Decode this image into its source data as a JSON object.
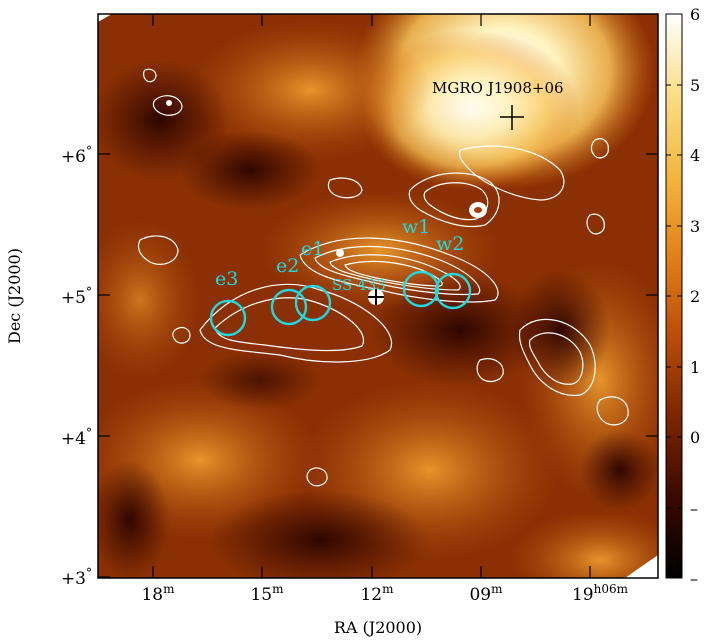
{
  "figure": {
    "xlabel": "RA (J2000)",
    "ylabel": "Dec (J2000)",
    "x_ticks": [
      {
        "label": "18",
        "sup": "m"
      },
      {
        "label": "15",
        "sup": "m"
      },
      {
        "label": "12",
        "sup": "m"
      },
      {
        "label": "09",
        "sup": "m"
      },
      {
        "label": "19",
        "sup": "h06m"
      }
    ],
    "y_ticks": [
      {
        "label": "+3",
        "sup": "°"
      },
      {
        "label": "+4",
        "sup": "°"
      },
      {
        "label": "+5",
        "sup": "°"
      },
      {
        "label": "+6",
        "sup": "°"
      }
    ],
    "colorbar_ticks": [
      "6",
      "5",
      "4",
      "3",
      "2",
      "1",
      "0",
      "–",
      "–"
    ],
    "labels": {
      "mgro": "MGRO J1908+06",
      "ss433": "SS 433",
      "w1": "w1",
      "w2": "w2",
      "e1": "e1",
      "e2": "e2",
      "e3": "e3"
    },
    "colors": {
      "marker_circle": "#22d8e0",
      "contour": "#ffffff",
      "colormap": [
        "#000000",
        "#3a0800",
        "#7a2400",
        "#b84a08",
        "#e07c18",
        "#f3b23a",
        "#fbdc82",
        "#ffffff"
      ]
    }
  }
}
